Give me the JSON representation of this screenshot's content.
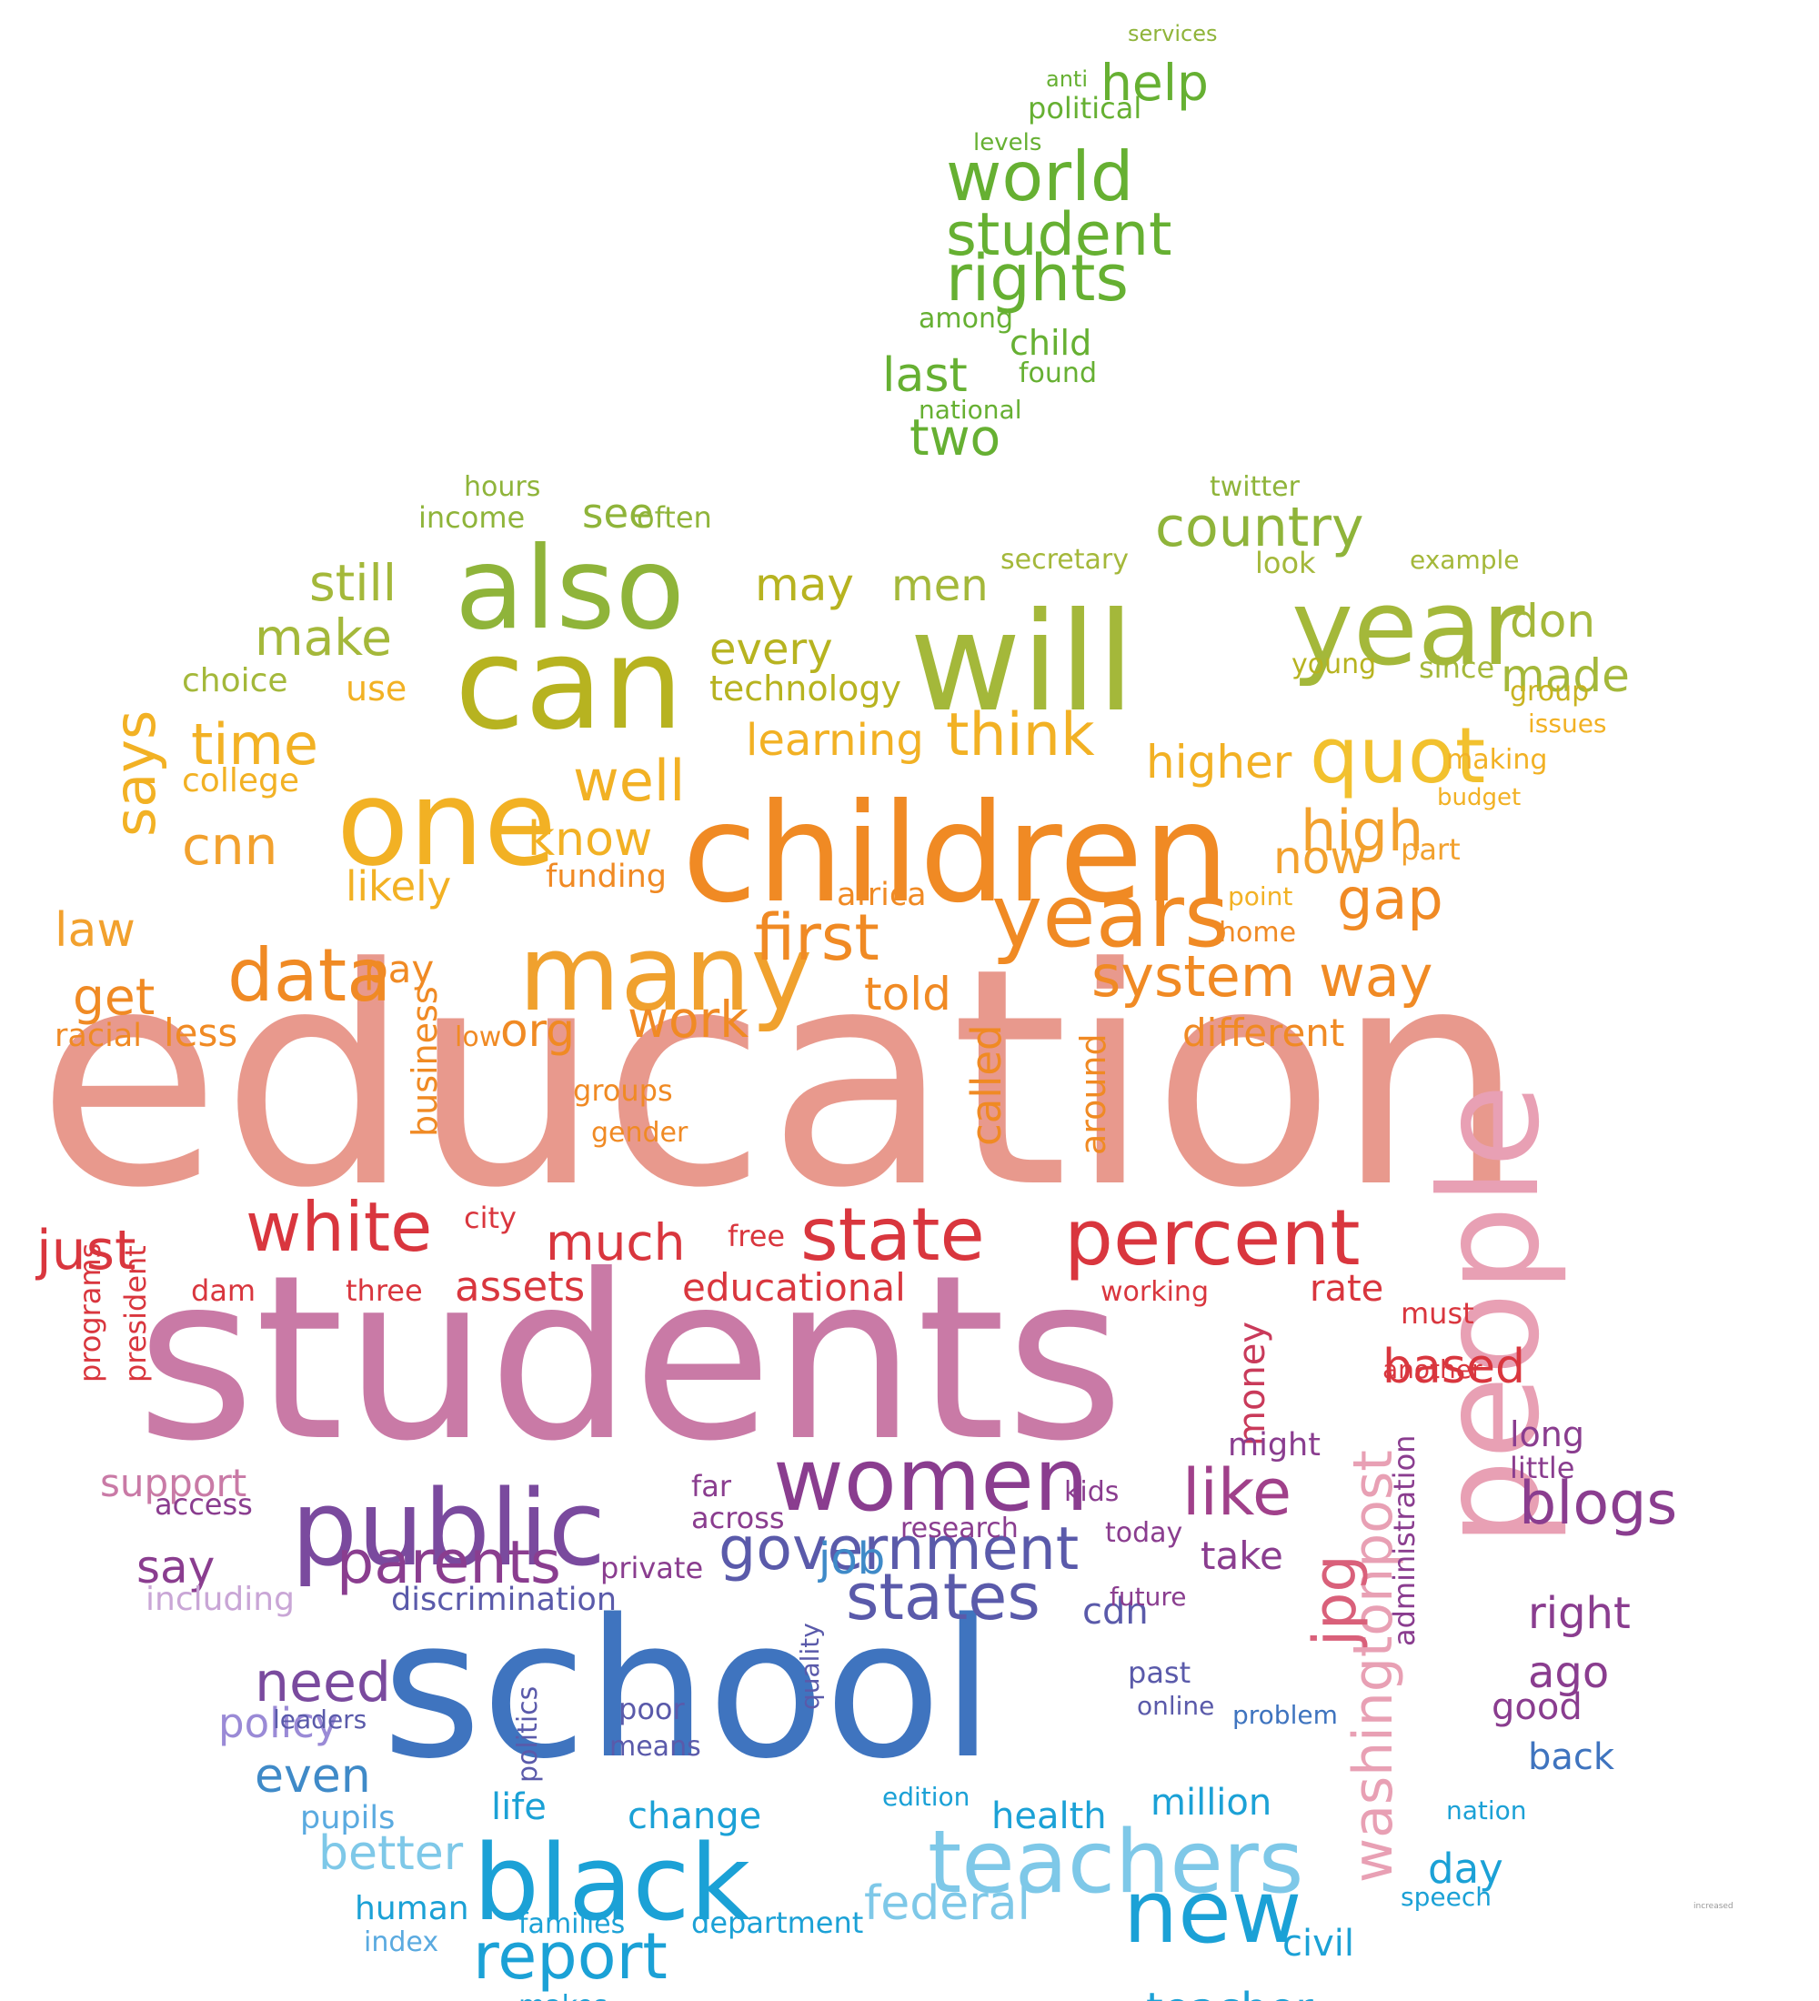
{
  "word_cloud": {
    "shape": "apple",
    "palette": {
      "green": "#66b032",
      "lime": "#a4b83a",
      "yellow": "#f2c12e",
      "orange": "#f08a24",
      "salmon": "#e8998d",
      "red": "#d9363e",
      "pink": "#c97aa6",
      "purple": "#7a4a9e",
      "blue": "#3f74bf",
      "cyan": "#1ba1d6",
      "lightblue": "#7ec8e8"
    },
    "words": [
      {
        "text": "education",
        "color": "#e8998d"
      },
      {
        "text": "students",
        "color": "#c97aa6"
      },
      {
        "text": "school",
        "color": "#3f74bf"
      },
      {
        "text": "children",
        "color": "#f08a24"
      },
      {
        "text": "people",
        "color": "#e8a0b4"
      },
      {
        "text": "will",
        "color": "#a4b83a"
      },
      {
        "text": "can",
        "color": "#b7b320"
      },
      {
        "text": "also",
        "color": "#8fb43a"
      },
      {
        "text": "year",
        "color": "#a4b83a"
      },
      {
        "text": "one",
        "color": "#f2b124"
      },
      {
        "text": "many",
        "color": "#f0a12e"
      },
      {
        "text": "years",
        "color": "#f08a24"
      },
      {
        "text": "public",
        "color": "#7a4a9e"
      },
      {
        "text": "black",
        "color": "#1ba1d6"
      },
      {
        "text": "women",
        "color": "#8a3d8f"
      },
      {
        "text": "white",
        "color": "#d9363e"
      },
      {
        "text": "percent",
        "color": "#d9363e"
      },
      {
        "text": "state",
        "color": "#d9363e"
      },
      {
        "text": "teachers",
        "color": "#7ec8e8"
      },
      {
        "text": "new",
        "color": "#1ba1d6"
      },
      {
        "text": "government",
        "color": "#5a5aaa"
      },
      {
        "text": "washingtonpost",
        "color": "#e8a0b4"
      },
      {
        "text": "data",
        "color": "#f08a24"
      },
      {
        "text": "quot",
        "color": "#f2c12e"
      },
      {
        "text": "world",
        "color": "#66b032"
      },
      {
        "text": "rights",
        "color": "#66b032"
      },
      {
        "text": "student",
        "color": "#66b032"
      },
      {
        "text": "help",
        "color": "#66b032"
      },
      {
        "text": "country",
        "color": "#8fb43a"
      },
      {
        "text": "like",
        "color": "#a0408a"
      },
      {
        "text": "parents",
        "color": "#8a3d8f"
      },
      {
        "text": "blogs",
        "color": "#8a3d8f"
      },
      {
        "text": "jpg",
        "color": "#d9607a"
      },
      {
        "text": "report",
        "color": "#1ba1d6"
      },
      {
        "text": "states",
        "color": "#5a5aaa"
      },
      {
        "text": "system",
        "color": "#f08a24"
      },
      {
        "text": "way",
        "color": "#f08a24"
      },
      {
        "text": "first",
        "color": "#f08a24"
      },
      {
        "text": "time",
        "color": "#f2b124"
      },
      {
        "text": "says",
        "color": "#f2b124"
      },
      {
        "text": "think",
        "color": "#f2b124"
      },
      {
        "text": "high",
        "color": "#f2a12e"
      },
      {
        "text": "gap",
        "color": "#f08a24"
      },
      {
        "text": "work",
        "color": "#f08a24"
      },
      {
        "text": "just",
        "color": "#d9363e"
      },
      {
        "text": "much",
        "color": "#d9363e"
      },
      {
        "text": "based",
        "color": "#d9363e"
      },
      {
        "text": "need",
        "color": "#7a4a9e"
      },
      {
        "text": "policy",
        "color": "#9a8ad6"
      },
      {
        "text": "even",
        "color": "#3f8ac8"
      },
      {
        "text": "say",
        "color": "#8a3d8f"
      },
      {
        "text": "support",
        "color": "#c97aa6"
      },
      {
        "text": "including",
        "color": "#c9a6d6"
      },
      {
        "text": "better",
        "color": "#7ec8e8"
      },
      {
        "text": "federal",
        "color": "#7ec8e8"
      },
      {
        "text": "teacher",
        "color": "#1ba1d6"
      },
      {
        "text": "human",
        "color": "#1ba1d6"
      },
      {
        "text": "life",
        "color": "#1ba1d6"
      },
      {
        "text": "change",
        "color": "#1ba1d6"
      },
      {
        "text": "health",
        "color": "#1ba1d6"
      },
      {
        "text": "million",
        "color": "#1ba1d6"
      },
      {
        "text": "day",
        "color": "#1ba1d6"
      },
      {
        "text": "right",
        "color": "#8a3d8f"
      },
      {
        "text": "ago",
        "color": "#8a3d8f"
      },
      {
        "text": "good",
        "color": "#8a3d8f"
      },
      {
        "text": "back",
        "color": "#3f74bf"
      },
      {
        "text": "civil",
        "color": "#1ba1d6"
      },
      {
        "text": "make",
        "color": "#a4b83a"
      },
      {
        "text": "still",
        "color": "#a4b83a"
      },
      {
        "text": "see",
        "color": "#8fb43a"
      },
      {
        "text": "men",
        "color": "#a4b83a"
      },
      {
        "text": "may",
        "color": "#b7b320"
      },
      {
        "text": "every",
        "color": "#b7b320"
      },
      {
        "text": "don",
        "color": "#a4b83a"
      },
      {
        "text": "made",
        "color": "#a4b83a"
      },
      {
        "text": "well",
        "color": "#f2b124"
      },
      {
        "text": "know",
        "color": "#f2b124"
      },
      {
        "text": "learning",
        "color": "#f2b124"
      },
      {
        "text": "technology",
        "color": "#b7b320"
      },
      {
        "text": "higher",
        "color": "#f2b124"
      },
      {
        "text": "now",
        "color": "#f2a12e"
      },
      {
        "text": "cnn",
        "color": "#f2a12e"
      },
      {
        "text": "law",
        "color": "#f2a12e"
      },
      {
        "text": "get",
        "color": "#f08a24"
      },
      {
        "text": "likely",
        "color": "#f2b124"
      },
      {
        "text": "org",
        "color": "#f08a24"
      },
      {
        "text": "told",
        "color": "#f08a24"
      },
      {
        "text": "pay",
        "color": "#f08a24"
      },
      {
        "text": "different",
        "color": "#f08a24"
      },
      {
        "text": "less",
        "color": "#f08a24"
      },
      {
        "text": "two",
        "color": "#66b032"
      },
      {
        "text": "last",
        "color": "#66b032"
      },
      {
        "text": "child",
        "color": "#66b032"
      },
      {
        "text": "found",
        "color": "#66b032"
      },
      {
        "text": "national",
        "color": "#66b032"
      },
      {
        "text": "political",
        "color": "#66b032"
      },
      {
        "text": "among",
        "color": "#66b032"
      },
      {
        "text": "assets",
        "color": "#d9363e"
      },
      {
        "text": "educational",
        "color": "#d9363e"
      },
      {
        "text": "rate",
        "color": "#d9363e"
      },
      {
        "text": "money",
        "color": "#c93a5a"
      },
      {
        "text": "must",
        "color": "#d9363e"
      },
      {
        "text": "take",
        "color": "#8a3d8f"
      },
      {
        "text": "might",
        "color": "#8a3d8f"
      },
      {
        "text": "long",
        "color": "#8a3d8f"
      },
      {
        "text": "little",
        "color": "#8a3d8f"
      },
      {
        "text": "job",
        "color": "#3f8ac8"
      },
      {
        "text": "discrimination",
        "color": "#5a5aaa"
      },
      {
        "text": "pupils",
        "color": "#5aaae0"
      },
      {
        "text": "cdn",
        "color": "#5a5aaa"
      },
      {
        "text": "across",
        "color": "#8a3d8f"
      },
      {
        "text": "research",
        "color": "#8a3d8f"
      },
      {
        "text": "far",
        "color": "#8a3d8f"
      },
      {
        "text": "private",
        "color": "#8a3d8f"
      },
      {
        "text": "department",
        "color": "#1ba1d6"
      },
      {
        "text": "families",
        "color": "#1ba1d6"
      },
      {
        "text": "makes",
        "color": "#1ba1d6"
      },
      {
        "text": "nation",
        "color": "#1ba1d6"
      },
      {
        "text": "speech",
        "color": "#1ba1d6"
      },
      {
        "text": "edition",
        "color": "#1ba1d6"
      },
      {
        "text": "poor",
        "color": "#5a5aaa"
      },
      {
        "text": "means",
        "color": "#5a5aaa"
      },
      {
        "text": "leaders",
        "color": "#5a5aaa"
      },
      {
        "text": "index",
        "color": "#5aaae0"
      },
      {
        "text": "online",
        "color": "#5a5aaa"
      },
      {
        "text": "problem",
        "color": "#3f74bf"
      },
      {
        "text": "past",
        "color": "#5a5aaa"
      },
      {
        "text": "future",
        "color": "#8a3d8f"
      },
      {
        "text": "today",
        "color": "#8a3d8f"
      },
      {
        "text": "kids",
        "color": "#8a3d8f"
      },
      {
        "text": "hours",
        "color": "#8fb43a"
      },
      {
        "text": "income",
        "color": "#8fb43a"
      },
      {
        "text": "often",
        "color": "#8fb43a"
      },
      {
        "text": "twitter",
        "color": "#8fb43a"
      },
      {
        "text": "secretary",
        "color": "#a4b83a"
      },
      {
        "text": "look",
        "color": "#a4b83a"
      },
      {
        "text": "young",
        "color": "#b7b320"
      },
      {
        "text": "since",
        "color": "#a4b83a"
      },
      {
        "text": "example",
        "color": "#a4b83a"
      },
      {
        "text": "group",
        "color": "#c9b320"
      },
      {
        "text": "choice",
        "color": "#a4b83a"
      },
      {
        "text": "use",
        "color": "#f2b124"
      },
      {
        "text": "college",
        "color": "#f2b124"
      },
      {
        "text": "africa",
        "color": "#f08a24"
      },
      {
        "text": "funding",
        "color": "#f08a24"
      },
      {
        "text": "racial",
        "color": "#f08a24"
      },
      {
        "text": "city",
        "color": "#d9363e"
      },
      {
        "text": "three",
        "color": "#d9363e"
      },
      {
        "text": "dam",
        "color": "#d9363e"
      },
      {
        "text": "free",
        "color": "#d9363e"
      },
      {
        "text": "working",
        "color": "#d9363e"
      },
      {
        "text": "another",
        "color": "#d9363e"
      },
      {
        "text": "called",
        "color": "#f08a24"
      },
      {
        "text": "groups",
        "color": "#f08a24"
      },
      {
        "text": "business",
        "color": "#f08a24"
      },
      {
        "text": "low",
        "color": "#f08a24"
      },
      {
        "text": "around",
        "color": "#f08a24"
      },
      {
        "text": "gender",
        "color": "#f08a24"
      },
      {
        "text": "home",
        "color": "#f08a24"
      },
      {
        "text": "part",
        "color": "#f2a12e"
      },
      {
        "text": "making",
        "color": "#f2b124"
      },
      {
        "text": "issues",
        "color": "#f2b124"
      },
      {
        "text": "budget",
        "color": "#f2b124"
      },
      {
        "text": "point",
        "color": "#f2b124"
      },
      {
        "text": "administration",
        "color": "#8a3d8f"
      },
      {
        "text": "president",
        "color": "#d9363e"
      },
      {
        "text": "programs",
        "color": "#d9363e"
      },
      {
        "text": "access",
        "color": "#8a3d8f"
      },
      {
        "text": "politics",
        "color": "#5a5aaa"
      },
      {
        "text": "quality",
        "color": "#5a5aaa"
      },
      {
        "text": "services",
        "color": "#8fb43a"
      },
      {
        "text": "anti",
        "color": "#66b032"
      },
      {
        "text": "levels",
        "color": "#66b032"
      },
      {
        "text": "increased",
        "color": "#999999"
      }
    ]
  }
}
